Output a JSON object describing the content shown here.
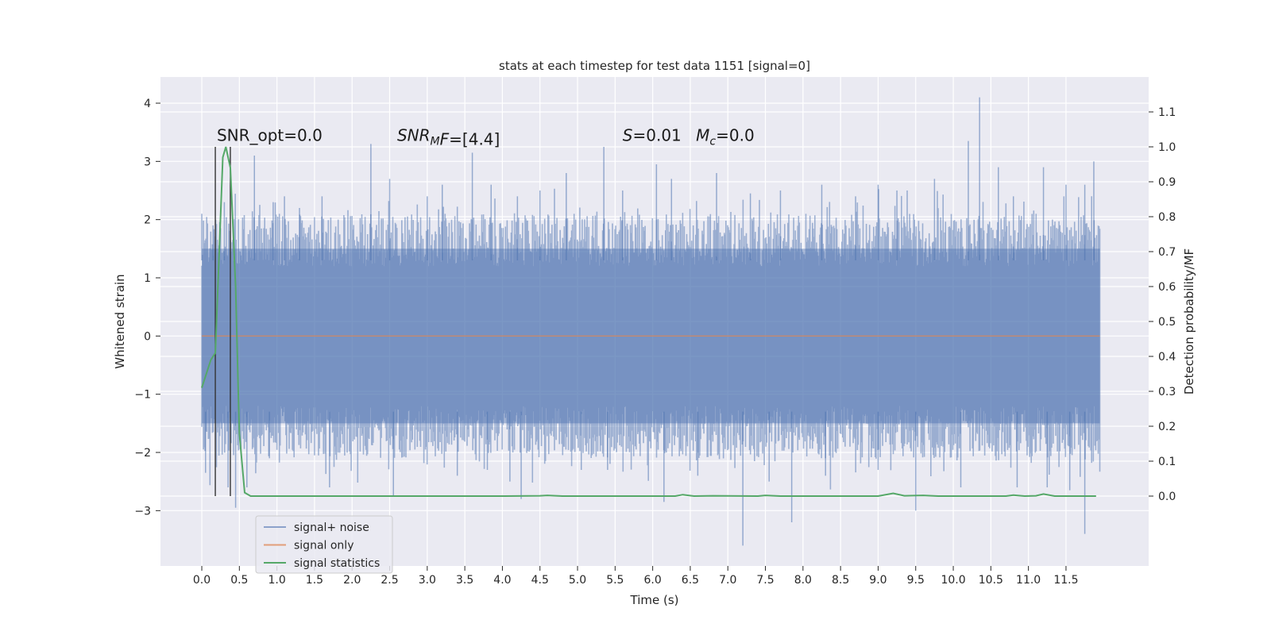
{
  "chart_data": {
    "type": "line",
    "title": "stats at each timestep for test data 1151 [signal=0]",
    "xlabel": "Time (s)",
    "ylabel": "Whitened strain",
    "ylabel_right": "Detection probability/MF",
    "xlim": [
      -0.55,
      12.6
    ],
    "ylim": [
      -3.95,
      4.45
    ],
    "ylim_right": [
      -0.2,
      1.2
    ],
    "xticks": [
      "0.0",
      "0.5",
      "1.0",
      "1.5",
      "2.0",
      "2.5",
      "3.0",
      "3.5",
      "4.0",
      "4.5",
      "5.0",
      "5.5",
      "6.0",
      "6.5",
      "7.0",
      "7.5",
      "8.0",
      "8.5",
      "9.0",
      "9.5",
      "10.0",
      "10.5",
      "11.0",
      "11.5"
    ],
    "yticks": [
      "4",
      "3",
      "2",
      "1",
      "0",
      "−1",
      "−2",
      "−3"
    ],
    "yticks_right": [
      "1.1",
      "1.0",
      "0.9",
      "0.8",
      "0.7",
      "0.6",
      "0.5",
      "0.4",
      "0.3",
      "0.2",
      "0.1",
      "0.0"
    ],
    "grid": true,
    "legend_position": "lower-left",
    "colors": {
      "background": "#eaeaf2",
      "noise": "#4c72b0",
      "signal": "#dd8452",
      "stats": "#55a868",
      "vline": "#333333"
    },
    "annotations": [
      {
        "text": "SNR_opt=0.0",
        "x": 0.2,
        "y": 3.35
      },
      {
        "text_parts": [
          "SNR",
          "M",
          "F=[4.4]"
        ],
        "x": 2.6,
        "y": 3.35
      },
      {
        "text_parts": [
          "S",
          "=0.01   ",
          "M",
          "c",
          "=0.0"
        ],
        "x": 5.6,
        "y": 3.35
      }
    ],
    "vertical_lines": [
      0.18,
      0.38
    ],
    "series": [
      {
        "name": "signal+ noise",
        "kind": "noise-band",
        "x_start": 0.0,
        "x_end": 11.95,
        "band": [
          -1.5,
          1.5
        ],
        "peaks_up": [
          [
            0.0,
            2.1
          ],
          [
            0.15,
            1.9
          ],
          [
            0.3,
            2.3
          ],
          [
            0.7,
            3.1
          ],
          [
            0.95,
            2.3
          ],
          [
            1.1,
            2.4
          ],
          [
            1.3,
            2.2
          ],
          [
            1.6,
            2.4
          ],
          [
            2.25,
            3.3
          ],
          [
            2.5,
            2.7
          ],
          [
            3.0,
            2.4
          ],
          [
            3.2,
            2.6
          ],
          [
            3.6,
            3.15
          ],
          [
            3.85,
            2.6
          ],
          [
            4.2,
            2.4
          ],
          [
            4.5,
            2.5
          ],
          [
            4.85,
            2.8
          ],
          [
            5.35,
            3.25
          ],
          [
            5.6,
            2.5
          ],
          [
            6.05,
            2.95
          ],
          [
            6.25,
            2.7
          ],
          [
            6.85,
            2.8
          ],
          [
            7.3,
            2.45
          ],
          [
            7.7,
            2.5
          ],
          [
            8.25,
            2.6
          ],
          [
            8.7,
            2.4
          ],
          [
            9.0,
            2.6
          ],
          [
            9.25,
            2.5
          ],
          [
            9.75,
            2.7
          ],
          [
            10.2,
            3.35
          ],
          [
            10.35,
            4.1
          ],
          [
            10.6,
            2.9
          ],
          [
            10.8,
            2.4
          ],
          [
            11.2,
            2.9
          ],
          [
            11.5,
            2.6
          ],
          [
            11.75,
            2.6
          ],
          [
            11.87,
            3.0
          ]
        ],
        "peaks_down": [
          [
            0.05,
            -2.35
          ],
          [
            0.35,
            -2.6
          ],
          [
            0.45,
            -2.95
          ],
          [
            0.6,
            -2.6
          ],
          [
            0.9,
            -2.1
          ],
          [
            1.7,
            -2.6
          ],
          [
            2.55,
            -2.75
          ],
          [
            3.4,
            -2.4
          ],
          [
            3.8,
            -2.3
          ],
          [
            4.1,
            -2.5
          ],
          [
            4.25,
            -2.8
          ],
          [
            5.05,
            -2.3
          ],
          [
            5.4,
            -2.3
          ],
          [
            6.15,
            -2.85
          ],
          [
            6.6,
            -2.4
          ],
          [
            7.2,
            -3.6
          ],
          [
            7.55,
            -2.5
          ],
          [
            7.85,
            -3.2
          ],
          [
            8.3,
            -2.4
          ],
          [
            9.0,
            -2.3
          ],
          [
            9.5,
            -3.0
          ],
          [
            10.1,
            -2.6
          ],
          [
            10.85,
            -2.6
          ],
          [
            11.25,
            -2.6
          ],
          [
            11.55,
            -2.65
          ],
          [
            11.75,
            -3.4
          ]
        ]
      },
      {
        "name": "signal only",
        "kind": "line",
        "x": [
          0.0,
          11.95
        ],
        "y": [
          0.0,
          0.0
        ]
      },
      {
        "name": "signal statistics",
        "kind": "line-right-axis",
        "x": [
          0.0,
          0.12,
          0.18,
          0.28,
          0.32,
          0.38,
          0.45,
          0.5,
          0.57,
          0.65,
          4.0,
          4.5,
          4.6,
          4.8,
          6.3,
          6.4,
          6.55,
          6.8,
          7.4,
          7.5,
          7.7,
          8.3,
          9.0,
          9.2,
          9.35,
          9.6,
          9.8,
          10.7,
          10.8,
          10.95,
          11.1,
          11.2,
          11.35,
          11.9
        ],
        "y": [
          0.31,
          0.39,
          0.41,
          0.97,
          1.0,
          0.94,
          0.6,
          0.18,
          0.01,
          0.0,
          0.0,
          0.001,
          0.002,
          0.0,
          0.0,
          0.004,
          0.0,
          0.001,
          0.0,
          0.002,
          0.0,
          0.0,
          0.0,
          0.008,
          0.001,
          0.002,
          0.0,
          0.0,
          0.003,
          0.0,
          0.001,
          0.006,
          0.0,
          0.0
        ]
      }
    ]
  }
}
